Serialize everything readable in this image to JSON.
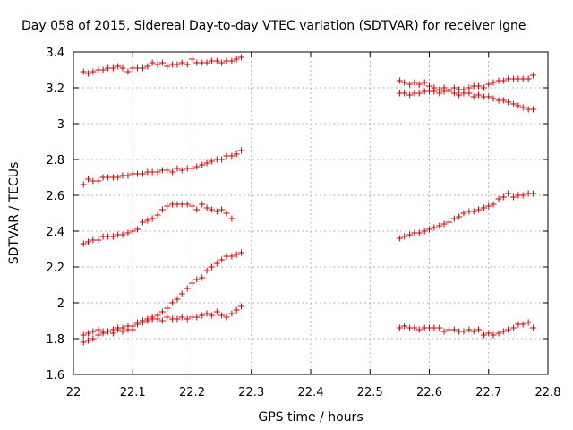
{
  "chart_data": {
    "type": "scatter",
    "title": "Day 058 of 2015, Sidereal Day-to-day VTEC variation (SDTVAR) for receiver igne",
    "xlabel": "GPS time / hours",
    "ylabel": "SDTVAR / TECUs",
    "xlim": [
      22.0,
      22.8
    ],
    "ylim": [
      1.6,
      3.4
    ],
    "xticks": [
      22.0,
      22.1,
      22.2,
      22.3,
      22.4,
      22.5,
      22.6,
      22.7,
      22.8
    ],
    "xtick_labels": [
      "22",
      "22.1",
      "22.2",
      "22.3",
      "22.4",
      "22.5",
      "22.6",
      "22.7",
      "22.8"
    ],
    "yticks": [
      1.6,
      1.8,
      2.0,
      2.2,
      2.4,
      2.6,
      2.8,
      3.0,
      3.2,
      3.4
    ],
    "ytick_labels": [
      "1.6",
      "1.8",
      "2",
      "2.2",
      "2.4",
      "2.6",
      "2.8",
      "3",
      "3.2",
      "3.4"
    ],
    "grid": true,
    "marker": "+",
    "color": "#cc0000",
    "series": [
      {
        "name": "s1",
        "x": [
          22.017,
          22.025,
          22.033,
          22.042,
          22.05,
          22.058,
          22.067,
          22.075,
          22.083,
          22.092,
          22.1,
          22.108,
          22.117,
          22.125,
          22.133,
          22.142,
          22.15,
          22.158,
          22.167,
          22.175,
          22.183,
          22.192,
          22.2,
          22.208,
          22.217,
          22.225,
          22.233,
          22.242,
          22.25,
          22.258,
          22.267,
          22.275,
          22.283
        ],
        "y": [
          3.29,
          3.28,
          3.29,
          3.3,
          3.3,
          3.31,
          3.31,
          3.32,
          3.31,
          3.29,
          3.31,
          3.31,
          3.31,
          3.32,
          3.34,
          3.33,
          3.34,
          3.32,
          3.33,
          3.33,
          3.34,
          3.33,
          3.36,
          3.34,
          3.34,
          3.34,
          3.35,
          3.35,
          3.34,
          3.35,
          3.35,
          3.36,
          3.37
        ]
      },
      {
        "name": "s2",
        "x": [
          22.017,
          22.025,
          22.033,
          22.042,
          22.05,
          22.058,
          22.067,
          22.075,
          22.083,
          22.092,
          22.1,
          22.108,
          22.117,
          22.125,
          22.133,
          22.142,
          22.15,
          22.158,
          22.167,
          22.175,
          22.183,
          22.192,
          22.2,
          22.208,
          22.217,
          22.225,
          22.233,
          22.242,
          22.25,
          22.258,
          22.267,
          22.275,
          22.283
        ],
        "y": [
          2.66,
          2.69,
          2.68,
          2.68,
          2.7,
          2.7,
          2.7,
          2.7,
          2.71,
          2.71,
          2.72,
          2.72,
          2.72,
          2.73,
          2.73,
          2.73,
          2.74,
          2.74,
          2.73,
          2.75,
          2.74,
          2.75,
          2.75,
          2.76,
          2.77,
          2.78,
          2.79,
          2.8,
          2.8,
          2.82,
          2.82,
          2.83,
          2.85
        ]
      },
      {
        "name": "s3",
        "x": [
          22.017,
          22.025,
          22.033,
          22.042,
          22.05,
          22.058,
          22.067,
          22.075,
          22.083,
          22.092,
          22.1,
          22.108,
          22.117,
          22.125,
          22.133,
          22.142,
          22.15,
          22.158,
          22.167,
          22.175,
          22.183,
          22.192,
          22.2,
          22.208,
          22.217,
          22.225,
          22.233,
          22.242,
          22.25,
          22.258,
          22.267
        ],
        "y": [
          2.33,
          2.34,
          2.35,
          2.35,
          2.37,
          2.37,
          2.37,
          2.38,
          2.38,
          2.39,
          2.4,
          2.41,
          2.45,
          2.46,
          2.47,
          2.49,
          2.52,
          2.54,
          2.55,
          2.55,
          2.55,
          2.55,
          2.54,
          2.52,
          2.55,
          2.53,
          2.52,
          2.51,
          2.52,
          2.5,
          2.47
        ]
      },
      {
        "name": "s4",
        "x": [
          22.017,
          22.025,
          22.033,
          22.042,
          22.05,
          22.058,
          22.067,
          22.075,
          22.083,
          22.092,
          22.1,
          22.108,
          22.117,
          22.125,
          22.133,
          22.142,
          22.15,
          22.158,
          22.167,
          22.175,
          22.183,
          22.192,
          22.2,
          22.208,
          22.217,
          22.225,
          22.233,
          22.242,
          22.25,
          22.258,
          22.267,
          22.275,
          22.283
        ],
        "y": [
          1.78,
          1.79,
          1.8,
          1.82,
          1.83,
          1.84,
          1.85,
          1.86,
          1.86,
          1.87,
          1.87,
          1.88,
          1.89,
          1.9,
          1.91,
          1.93,
          1.95,
          1.97,
          2.0,
          2.02,
          2.05,
          2.08,
          2.11,
          2.13,
          2.14,
          2.18,
          2.2,
          2.22,
          2.24,
          2.26,
          2.26,
          2.27,
          2.28
        ]
      },
      {
        "name": "s5",
        "x": [
          22.017,
          22.025,
          22.033,
          22.042,
          22.05,
          22.058,
          22.067,
          22.075,
          22.083,
          22.092,
          22.1,
          22.108,
          22.117,
          22.125,
          22.133,
          22.142,
          22.15,
          22.158,
          22.167,
          22.175,
          22.183,
          22.192,
          22.2,
          22.208,
          22.217,
          22.225,
          22.233,
          22.242,
          22.25,
          22.258,
          22.267,
          22.275,
          22.283
        ],
        "y": [
          1.82,
          1.83,
          1.84,
          1.85,
          1.84,
          1.84,
          1.83,
          1.85,
          1.84,
          1.85,
          1.85,
          1.89,
          1.9,
          1.91,
          1.92,
          1.91,
          1.9,
          1.92,
          1.91,
          1.91,
          1.92,
          1.91,
          1.92,
          1.92,
          1.93,
          1.94,
          1.93,
          1.95,
          1.93,
          1.92,
          1.94,
          1.96,
          1.98
        ]
      },
      {
        "name": "s6",
        "x": [
          22.55,
          22.558,
          22.567,
          22.575,
          22.583,
          22.592,
          22.6,
          22.608,
          22.617,
          22.625,
          22.633,
          22.642,
          22.65,
          22.658,
          22.667,
          22.675,
          22.683,
          22.692,
          22.7,
          22.708,
          22.717,
          22.725,
          22.733,
          22.742,
          22.75,
          22.758,
          22.767,
          22.775
        ],
        "y": [
          3.24,
          3.23,
          3.22,
          3.23,
          3.22,
          3.23,
          3.21,
          3.2,
          3.19,
          3.2,
          3.19,
          3.2,
          3.19,
          3.19,
          3.2,
          3.21,
          3.21,
          3.2,
          3.22,
          3.23,
          3.24,
          3.24,
          3.25,
          3.25,
          3.25,
          3.25,
          3.25,
          3.27
        ]
      },
      {
        "name": "s7",
        "x": [
          22.55,
          22.558,
          22.567,
          22.575,
          22.583,
          22.592,
          22.6,
          22.608,
          22.617,
          22.625,
          22.633,
          22.642,
          22.65,
          22.658,
          22.667,
          22.675,
          22.683,
          22.692,
          22.7,
          22.708,
          22.717,
          22.725,
          22.733,
          22.742,
          22.75,
          22.758,
          22.767,
          22.775
        ],
        "y": [
          3.17,
          3.17,
          3.16,
          3.17,
          3.17,
          3.18,
          3.18,
          3.18,
          3.17,
          3.18,
          3.18,
          3.17,
          3.16,
          3.17,
          3.17,
          3.15,
          3.16,
          3.15,
          3.15,
          3.14,
          3.13,
          3.13,
          3.12,
          3.11,
          3.1,
          3.09,
          3.08,
          3.08
        ]
      },
      {
        "name": "s8",
        "x": [
          22.55,
          22.558,
          22.567,
          22.575,
          22.583,
          22.592,
          22.6,
          22.608,
          22.617,
          22.625,
          22.633,
          22.642,
          22.65,
          22.658,
          22.667,
          22.675,
          22.683,
          22.692,
          22.7,
          22.708,
          22.717,
          22.725,
          22.733,
          22.742,
          22.75,
          22.758,
          22.767,
          22.775
        ],
        "y": [
          2.36,
          2.37,
          2.38,
          2.39,
          2.39,
          2.4,
          2.41,
          2.42,
          2.43,
          2.44,
          2.45,
          2.47,
          2.48,
          2.5,
          2.51,
          2.51,
          2.52,
          2.53,
          2.54,
          2.55,
          2.58,
          2.59,
          2.61,
          2.59,
          2.6,
          2.6,
          2.61,
          2.61
        ]
      },
      {
        "name": "s9",
        "x": [
          22.55,
          22.558,
          22.567,
          22.575,
          22.583,
          22.592,
          22.6,
          22.608,
          22.617,
          22.625,
          22.633,
          22.642,
          22.65,
          22.658,
          22.667,
          22.675,
          22.683,
          22.692,
          22.7,
          22.708,
          22.717,
          22.725,
          22.733,
          22.742,
          22.75,
          22.758,
          22.767,
          22.775
        ],
        "y": [
          1.86,
          1.87,
          1.86,
          1.86,
          1.85,
          1.86,
          1.86,
          1.86,
          1.86,
          1.84,
          1.85,
          1.85,
          1.84,
          1.84,
          1.85,
          1.84,
          1.85,
          1.82,
          1.83,
          1.82,
          1.83,
          1.84,
          1.85,
          1.86,
          1.88,
          1.88,
          1.89,
          1.86
        ]
      }
    ]
  }
}
